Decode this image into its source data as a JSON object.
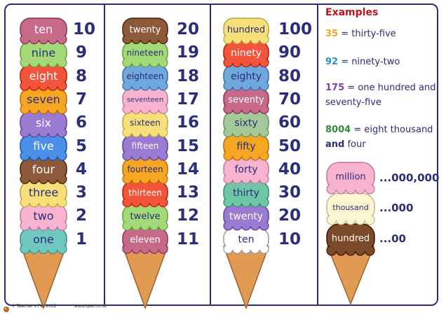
{
  "columns": [
    {
      "scoops": [
        {
          "word": "ten",
          "color": "#c76a8a"
        },
        {
          "word": "nine",
          "color": "#a3d977"
        },
        {
          "word": "eight",
          "color": "#f2553b"
        },
        {
          "word": "seven",
          "color": "#f5a623"
        },
        {
          "word": "six",
          "color": "#9b7ad1"
        },
        {
          "word": "five",
          "color": "#4a8fe8"
        },
        {
          "word": "four",
          "color": "#8c5a3a"
        },
        {
          "word": "three",
          "color": "#f7e07a"
        },
        {
          "word": "two",
          "color": "#f7b3d0"
        },
        {
          "word": "one",
          "color": "#6fc7c0"
        }
      ],
      "numbers": [
        "10",
        "9",
        "8",
        "7",
        "6",
        "5",
        "4",
        "3",
        "2",
        "1"
      ]
    },
    {
      "scoops": [
        {
          "word": "twenty",
          "color": "#8c5a3a"
        },
        {
          "word": "nineteen",
          "color": "#a3d977"
        },
        {
          "word": "eighteen",
          "color": "#6fa8dc"
        },
        {
          "word": "seventeen",
          "color": "#f7b3d0"
        },
        {
          "word": "sixteen",
          "color": "#f7e07a"
        },
        {
          "word": "fifteen",
          "color": "#9b7ad1"
        },
        {
          "word": "fourteen",
          "color": "#f5a623"
        },
        {
          "word": "thirteen",
          "color": "#f2553b"
        },
        {
          "word": "twelve",
          "color": "#a3d977"
        },
        {
          "word": "eleven",
          "color": "#c76a8a"
        }
      ],
      "numbers": [
        "20",
        "19",
        "18",
        "17",
        "16",
        "15",
        "14",
        "13",
        "12",
        "11"
      ]
    },
    {
      "scoops": [
        {
          "word": "hundred",
          "color": "#f7e07a"
        },
        {
          "word": "ninety",
          "color": "#f2553b"
        },
        {
          "word": "eighty",
          "color": "#6fa8dc"
        },
        {
          "word": "seventy",
          "color": "#c76a8a"
        },
        {
          "word": "sixty",
          "color": "#a3c999"
        },
        {
          "word": "fifty",
          "color": "#f5a623"
        },
        {
          "word": "forty",
          "color": "#f7b3d0"
        },
        {
          "word": "thirty",
          "color": "#6fc7a8"
        },
        {
          "word": "twenty",
          "color": "#9b7ad1"
        },
        {
          "word": "ten",
          "color": "#ffffff"
        }
      ],
      "numbers": [
        "100",
        "90",
        "80",
        "70",
        "60",
        "50",
        "40",
        "30",
        "20",
        "10"
      ]
    }
  ],
  "examples": {
    "title": "Examples",
    "items": [
      {
        "number": "35",
        "color": "#f5a623",
        "text": " = thirty-five"
      },
      {
        "number": "92",
        "color": "#2a8fd6",
        "text": " = ninety-two"
      },
      {
        "number": "175",
        "color": "#7a3fb5",
        "text": " = one hundred and seventy-five"
      },
      {
        "number": "8004",
        "color": "#2e8b3a",
        "text_a": " = eight thousand ",
        "bold": "and",
        "text_b": " four"
      }
    ]
  },
  "big_cone": {
    "scoops": [
      {
        "word": "million",
        "color": "#f7b3d0",
        "suffix": "...000,000"
      },
      {
        "word": "thousand",
        "color": "#fbf5d0",
        "suffix": "...000"
      },
      {
        "word": "hundred",
        "color": "#7a4a2a",
        "suffix": "...00"
      }
    ]
  },
  "footer": {
    "copyright": "© Teacher's Pet 2012",
    "url": "www.tpet.co.uk"
  }
}
